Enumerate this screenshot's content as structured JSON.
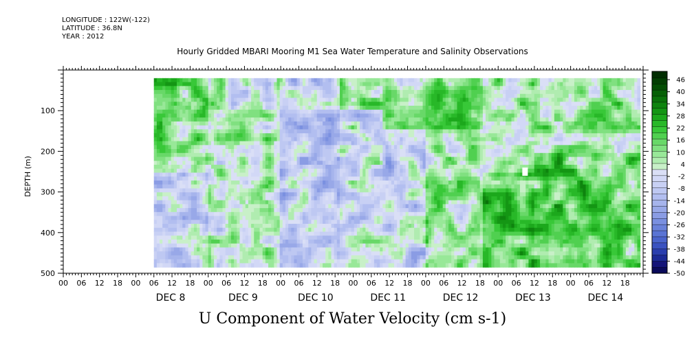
{
  "header": {
    "longitude": "LONGITUDE : 122W(-122)",
    "latitude": "LATITUDE : 36.8N",
    "year": "YEAR : 2012"
  },
  "chart_data": {
    "type": "heatmap",
    "title": "Hourly Gridded MBARI Mooring M1 Sea Water Temperature and Salinity Observations",
    "variable_label": "U Component of Water Velocity (cm s-1)",
    "ylabel": "DEPTH (m)",
    "ylim": [
      500,
      0
    ],
    "y_ticks": [
      100,
      200,
      300,
      400,
      500
    ],
    "x_hour_ticks": [
      "00",
      "06",
      "12",
      "18",
      "00",
      "06",
      "12",
      "18",
      "00",
      "06",
      "12",
      "18",
      "00",
      "06",
      "12",
      "18",
      "00",
      "06",
      "12",
      "18",
      "00",
      "06",
      "12",
      "18",
      "00",
      "06",
      "12",
      "18",
      "00",
      "06",
      "12",
      "18"
    ],
    "x_day_labels": [
      "DEC  8",
      "DEC  9",
      "DEC 10",
      "DEC 11",
      "DEC 12",
      "DEC 13",
      "DEC 14"
    ],
    "x_range_hours": [
      "2012-12-07 00:00",
      "2012-12-15 00:00"
    ],
    "data_range_hours": [
      "2012-12-08 06:00",
      "2012-12-14 23:00"
    ],
    "depth_range": [
      20,
      485
    ],
    "colorbar": {
      "labels": [
        "46",
        "40",
        "34",
        "28",
        "22",
        "16",
        "10",
        "4",
        "-2",
        "-8",
        "-14",
        "-20",
        "-26",
        "-32",
        "-38",
        "-44",
        "-50"
      ],
      "levels": [
        -50,
        -47,
        -44,
        -41,
        -38,
        -35,
        -32,
        -29,
        -26,
        -23,
        -20,
        -17,
        -14,
        -11,
        -8,
        -5,
        -2,
        1,
        4,
        7,
        10,
        13,
        16,
        19,
        22,
        25,
        28,
        31,
        34,
        37,
        40,
        43,
        46,
        49
      ],
      "colors": [
        "#0a0a5a",
        "#141478",
        "#1c2a96",
        "#2a3eae",
        "#3a52c0",
        "#4a64cc",
        "#5a74d4",
        "#6a82da",
        "#7a90e0",
        "#8a9ce4",
        "#98a8e8",
        "#a6b4ec",
        "#b2bef0",
        "#bec8f2",
        "#c8d0f4",
        "#d2d8f6",
        "#dadff6",
        "#c8f0c8",
        "#b0ecb0",
        "#98e898",
        "#80e080",
        "#68d868",
        "#50d050",
        "#38c838",
        "#28b828",
        "#1ca81c",
        "#149614",
        "#0e840e",
        "#0a720a",
        "#066006",
        "#044e04",
        "#033e03",
        "#022e02"
      ]
    },
    "description_regions": [
      {
        "day": "DEC 8",
        "upper": "strong positive",
        "lower": "negative"
      },
      {
        "day": "DEC 10",
        "upper": "negative",
        "lower": "negative"
      },
      {
        "day": "DEC 13",
        "upper": "positive",
        "lower": "strong positive"
      }
    ]
  }
}
